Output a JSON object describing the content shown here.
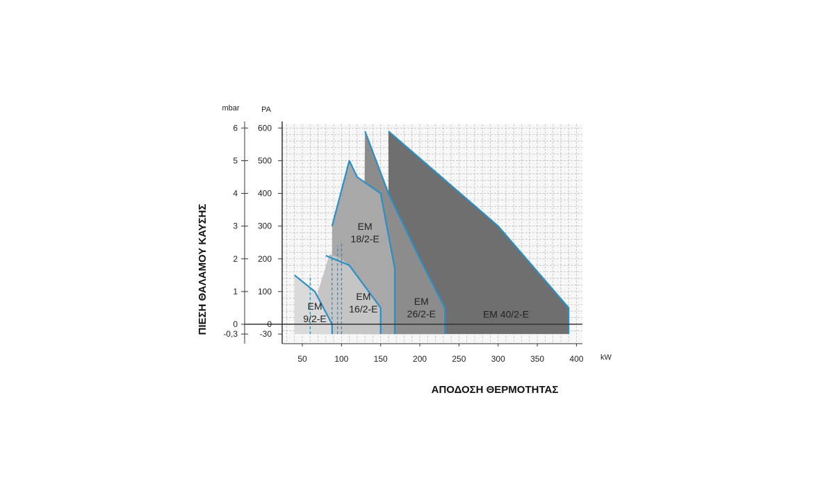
{
  "chart_data": {
    "type": "area",
    "title": "",
    "xlabel": "ΑΠΟΔΟΣΗ ΘΕΡΜΟΤΗΤΑΣ",
    "ylabel": "ΠΙΕΣΗ ΘΑΛΑΜΟΥ ΚΑΥΣΗΣ",
    "x_unit": "kW",
    "y_unit_left": "mbar",
    "y_unit_right": "PA",
    "xlim": [
      20,
      405
    ],
    "ylim": [
      -30,
      610
    ],
    "grid": true,
    "x_ticks": [
      50,
      100,
      150,
      200,
      250,
      300,
      350,
      400
    ],
    "y_ticks_pa": [
      600,
      500,
      400,
      300,
      200,
      100,
      0,
      -30
    ],
    "y_ticks_pa_labels": [
      "600",
      "500",
      "400",
      "300",
      "200",
      "100",
      "0",
      "-30"
    ],
    "y_ticks_mbar": [
      {
        "value": 600,
        "label": "6"
      },
      {
        "value": 500,
        "label": "5"
      },
      {
        "value": 400,
        "label": "4"
      },
      {
        "value": 300,
        "label": "3"
      },
      {
        "value": 200,
        "label": "2"
      },
      {
        "value": 100,
        "label": "1"
      },
      {
        "value": 0,
        "label": "0"
      },
      {
        "value": -30,
        "label": "-0,3"
      }
    ],
    "series": [
      {
        "name": "EM 40/2-E",
        "color": "#6f6f6f",
        "points": [
          [
            160,
            -30
          ],
          [
            160,
            590
          ],
          [
            300,
            300
          ],
          [
            390,
            50
          ],
          [
            390,
            -30
          ]
        ]
      },
      {
        "name": "EM 26/2-E",
        "color": "#8c8c8c",
        "points": [
          [
            128,
            -30
          ],
          [
            130,
            590
          ],
          [
            160,
            400
          ],
          [
            200,
            200
          ],
          [
            232,
            50
          ],
          [
            232,
            -30
          ]
        ]
      },
      {
        "name": "EM 18/2-E",
        "color": "#a8a8a8",
        "points": [
          [
            88,
            -30
          ],
          [
            88,
            300
          ],
          [
            110,
            500
          ],
          [
            120,
            450
          ],
          [
            150,
            400
          ],
          [
            168,
            170
          ],
          [
            168,
            -30
          ]
        ]
      },
      {
        "name": "EM 16/2-E",
        "color": "#c5c5c5",
        "points": [
          [
            68,
            -30
          ],
          [
            70,
            100
          ],
          [
            85,
            215
          ],
          [
            100,
            200
          ],
          [
            110,
            180
          ],
          [
            150,
            50
          ],
          [
            150,
            -30
          ]
        ]
      },
      {
        "name": "EM 9/2-E",
        "color": "#dadada",
        "points": [
          [
            40,
            -30
          ],
          [
            40,
            150
          ],
          [
            66,
            100
          ],
          [
            88,
            0
          ],
          [
            88,
            -30
          ]
        ]
      }
    ],
    "outlines": [
      {
        "series": "EM 9/2-E",
        "points": [
          [
            40,
            150
          ],
          [
            66,
            100
          ],
          [
            88,
            0
          ],
          [
            88,
            -30
          ]
        ]
      },
      {
        "series": "EM 16/2-E",
        "points": [
          [
            80,
            210
          ],
          [
            110,
            180
          ],
          [
            150,
            50
          ],
          [
            150,
            -30
          ]
        ]
      },
      {
        "series": "EM 18/2-E",
        "points": [
          [
            88,
            300
          ],
          [
            110,
            500
          ],
          [
            120,
            450
          ],
          [
            150,
            400
          ],
          [
            168,
            170
          ],
          [
            168,
            -30
          ]
        ]
      },
      {
        "series": "EM 26/2-E",
        "points": [
          [
            130,
            590
          ],
          [
            160,
            400
          ],
          [
            200,
            200
          ],
          [
            232,
            50
          ],
          [
            232,
            -30
          ]
        ]
      },
      {
        "series": "EM 40/2-E",
        "points": [
          [
            160,
            590
          ],
          [
            300,
            300
          ],
          [
            390,
            50
          ],
          [
            390,
            -30
          ]
        ]
      }
    ],
    "dashed_lines": [
      {
        "points": [
          [
            60,
            -30
          ],
          [
            60,
            150
          ]
        ]
      },
      {
        "points": [
          [
            88,
            -30
          ],
          [
            88,
            210
          ]
        ]
      },
      {
        "points": [
          [
            95,
            -30
          ],
          [
            95,
            240
          ]
        ]
      },
      {
        "points": [
          [
            100,
            -30
          ],
          [
            100,
            250
          ]
        ]
      }
    ],
    "annotations": [
      {
        "lines": [
          "EM",
          "9/2-E"
        ],
        "x": 66,
        "y": 25
      },
      {
        "lines": [
          "EM",
          "16/2-E"
        ],
        "x": 128,
        "y": 55
      },
      {
        "lines": [
          "EM",
          "18/2-E"
        ],
        "x": 130,
        "y": 270
      },
      {
        "lines": [
          "EM",
          "26/2-E"
        ],
        "x": 202,
        "y": 40
      },
      {
        "lines": [
          "EM 40/2-E"
        ],
        "x": 310,
        "y": 20
      }
    ],
    "colors": {
      "outline": "#2a8fc6",
      "grid": "#bdbdbd",
      "axis": "#333333"
    }
  }
}
